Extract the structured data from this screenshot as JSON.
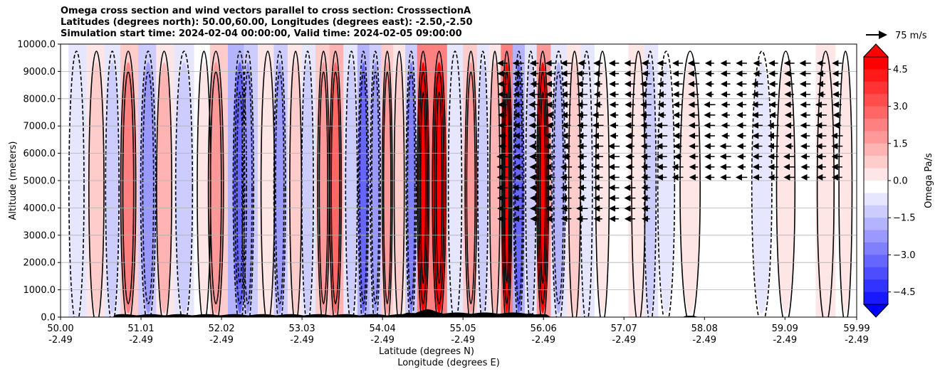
{
  "chart_data": {
    "type": "heatmap",
    "title_lines": [
      "Omega cross section and wind vectors parallel to cross section: CrosssectionA",
      "Latitudes (degrees north): 50.00,60.00, Longitudes (degrees east): -2.50,-2.50",
      "Simulation start time: 2024-02-04 00:00:00, Valid time: 2024-02-05 09:00:00"
    ],
    "ylabel": "Altitude (meters)",
    "xlabel_lines": [
      "Latitude (degrees N)",
      "Longitude (degrees E)"
    ],
    "ylim": [
      0,
      10000
    ],
    "y_ticks": [
      "0.0",
      "1000.0",
      "2000.0",
      "3000.0",
      "4000.0",
      "5000.0",
      "6000.0",
      "7000.0",
      "8000.0",
      "9000.0",
      "10000.0"
    ],
    "x_ticks": [
      {
        "lat": "50.00",
        "lon": "-2.49"
      },
      {
        "lat": "51.01",
        "lon": "-2.49"
      },
      {
        "lat": "52.02",
        "lon": "-2.49"
      },
      {
        "lat": "53.03",
        "lon": "-2.49"
      },
      {
        "lat": "54.04",
        "lon": "-2.49"
      },
      {
        "lat": "55.05",
        "lon": "-2.49"
      },
      {
        "lat": "56.06",
        "lon": "-2.49"
      },
      {
        "lat": "57.07",
        "lon": "-2.49"
      },
      {
        "lat": "58.08",
        "lon": "-2.49"
      },
      {
        "lat": "59.09",
        "lon": "-2.49"
      },
      {
        "lat": "59.99",
        "lon": "-2.49"
      }
    ],
    "colorbar": {
      "label": "Omega Pa/s",
      "range": [
        -5,
        5
      ],
      "ticks": [
        "−4.5",
        "−3.0",
        "−1.5",
        "0.0",
        "1.5",
        "3.0",
        "4.5"
      ],
      "tick_values": [
        -4.5,
        -3.0,
        -1.5,
        0.0,
        1.5,
        3.0,
        4.5
      ],
      "colormap": "bwr",
      "low_color": "#0000ff",
      "mid_color": "#ffffff",
      "high_color": "#ff0000"
    },
    "quiver_key": "75 m/s",
    "grid": true,
    "omega_columns": [
      {
        "lat": 50.2,
        "value": -0.6
      },
      {
        "lat": 50.45,
        "value": 0.8
      },
      {
        "lat": 50.65,
        "value": -1.2
      },
      {
        "lat": 50.85,
        "value": 2.4
      },
      {
        "lat": 51.1,
        "value": -2.0
      },
      {
        "lat": 51.3,
        "value": 1.5
      },
      {
        "lat": 51.55,
        "value": -0.8
      },
      {
        "lat": 51.8,
        "value": 0.5
      },
      {
        "lat": 51.95,
        "value": 2.0
      },
      {
        "lat": 52.25,
        "value": -3.2
      },
      {
        "lat": 52.35,
        "value": -2.2
      },
      {
        "lat": 52.6,
        "value": 0.7
      },
      {
        "lat": 52.75,
        "value": -1.8
      },
      {
        "lat": 52.95,
        "value": 1.2
      },
      {
        "lat": 53.1,
        "value": -1.0
      },
      {
        "lat": 53.3,
        "value": 1.8
      },
      {
        "lat": 53.45,
        "value": 3.0
      },
      {
        "lat": 53.65,
        "value": -0.8
      },
      {
        "lat": 53.8,
        "value": -2.8
      },
      {
        "lat": 53.95,
        "value": -2.2
      },
      {
        "lat": 54.1,
        "value": 2.2
      },
      {
        "lat": 54.25,
        "value": 0.8
      },
      {
        "lat": 54.4,
        "value": -2.6
      },
      {
        "lat": 54.55,
        "value": 5.5
      },
      {
        "lat": 54.75,
        "value": 5.5
      },
      {
        "lat": 54.95,
        "value": -0.6
      },
      {
        "lat": 55.15,
        "value": 2.0
      },
      {
        "lat": 55.3,
        "value": -1.2
      },
      {
        "lat": 55.45,
        "value": 1.4
      },
      {
        "lat": 55.6,
        "value": 5.5
      },
      {
        "lat": 55.75,
        "value": -2.8
      },
      {
        "lat": 55.9,
        "value": -1.0
      },
      {
        "lat": 56.05,
        "value": 4.8
      },
      {
        "lat": 56.25,
        "value": -1.6
      },
      {
        "lat": 56.45,
        "value": 0.8
      },
      {
        "lat": 56.6,
        "value": -0.6
      },
      {
        "lat": 56.8,
        "value": 0.4
      },
      {
        "lat": 57.0,
        "value": -0.2
      },
      {
        "lat": 57.25,
        "value": 0.6
      },
      {
        "lat": 57.4,
        "value": -0.8
      },
      {
        "lat": 57.6,
        "value": -0.3
      },
      {
        "lat": 57.9,
        "value": 0.5
      },
      {
        "lat": 58.2,
        "value": -0.2
      },
      {
        "lat": 58.5,
        "value": 0.2
      },
      {
        "lat": 58.8,
        "value": -0.3
      },
      {
        "lat": 59.1,
        "value": 0.4
      },
      {
        "lat": 59.35,
        "value": -0.2
      },
      {
        "lat": 59.6,
        "value": 0.7
      },
      {
        "lat": 59.85,
        "value": 0.3
      }
    ]
  }
}
